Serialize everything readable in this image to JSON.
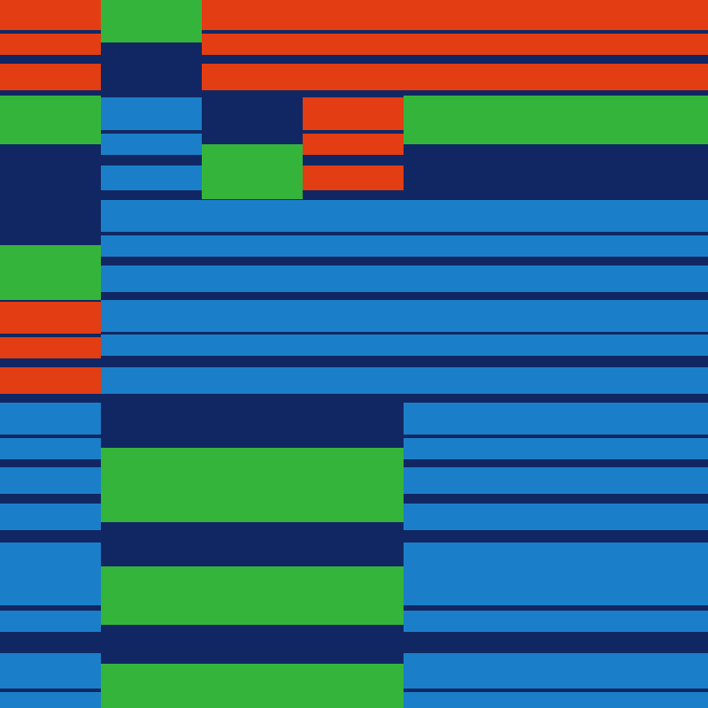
{
  "palette": {
    "red": "#e23d13",
    "green": "#35b43c",
    "navy": "#112763",
    "blue": "#1a7fc8"
  },
  "stripes": {
    "zone1_cells": [
      "red",
      "green",
      "red",
      "red"
    ],
    "zone1_rows": [
      "red",
      "navy",
      "red",
      "navy",
      "red"
    ],
    "zone2_cells": [
      "green",
      "blue",
      "navy",
      "red",
      "green"
    ],
    "zone2_rows": [
      "blue",
      "navy",
      "blue",
      "navy",
      "blue"
    ],
    "zone3_rows": [
      "navy",
      "green",
      "navy",
      "blue",
      "navy",
      "blue",
      "navy",
      "blue",
      "navy",
      "blue",
      "navy",
      "red",
      "navy",
      "red",
      "navy"
    ],
    "zone4_columns": [
      "blue",
      "navy",
      "green",
      "navy",
      "green",
      "navy",
      "green"
    ],
    "zone5_rows": [
      "blue",
      "navy",
      "blue",
      "navy",
      "blue",
      "navy",
      "blue",
      "navy",
      "blue",
      "navy",
      "blue",
      "navy",
      "blue",
      "navy",
      "blue"
    ]
  }
}
